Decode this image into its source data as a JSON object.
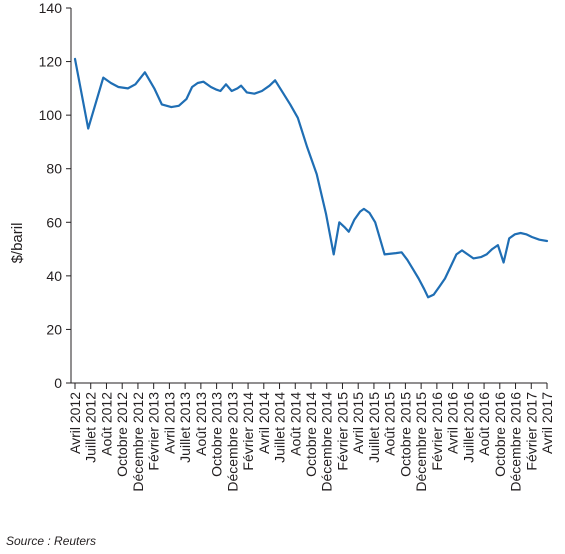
{
  "chart_data": {
    "type": "line",
    "ylabel": "$/baril",
    "ylim": [
      0,
      140
    ],
    "yticks": [
      0,
      20,
      40,
      60,
      80,
      100,
      120,
      140
    ],
    "x_tick_labels": [
      "Avril 2012",
      "Juillet 2012",
      "Août 2012",
      "Octobre 2012",
      "Décembre 2012",
      "Février 2013",
      "Avril 2013",
      "Juillet 2013",
      "Août 2013",
      "Octobre 2013",
      "Décembre 2013",
      "Février 2014",
      "Avril 2014",
      "Juillet 2014",
      "Août 2014",
      "Octobre 2014",
      "Décembre 2014",
      "Février 2015",
      "Avril 2015",
      "Juillet 2015",
      "Août 2015",
      "Octobre 2015",
      "Décembre 2015",
      "Février 2016",
      "Avril 2016",
      "Juillet 2016",
      "Août 2016",
      "Octobre 2016",
      "Décembre 2016",
      "Février 2017",
      "Avril 2017"
    ],
    "series": [
      {
        "color": "#1f6eb4",
        "points": [
          [
            0,
            121
          ],
          [
            3.5,
            95
          ],
          [
            7.5,
            114
          ],
          [
            9.5,
            112
          ],
          [
            11.5,
            110.5
          ],
          [
            14,
            110
          ],
          [
            16,
            111.5
          ],
          [
            18.5,
            116
          ],
          [
            21,
            110
          ],
          [
            23,
            104
          ],
          [
            25.5,
            103
          ],
          [
            27.5,
            103.5
          ],
          [
            29.5,
            106
          ],
          [
            31,
            110.5
          ],
          [
            32.5,
            112
          ],
          [
            34,
            112.5
          ],
          [
            36,
            110.5
          ],
          [
            37.5,
            109.5
          ],
          [
            38.5,
            109
          ],
          [
            40,
            111.5
          ],
          [
            41.5,
            109
          ],
          [
            43,
            110
          ],
          [
            44,
            111
          ],
          [
            45.5,
            108.5
          ],
          [
            47.5,
            108
          ],
          [
            49.5,
            109
          ],
          [
            51.5,
            111
          ],
          [
            53,
            113
          ],
          [
            55,
            108.5
          ],
          [
            57,
            104
          ],
          [
            59,
            99
          ],
          [
            61.5,
            88
          ],
          [
            64,
            78
          ],
          [
            66.5,
            63
          ],
          [
            68.5,
            48
          ],
          [
            70,
            60
          ],
          [
            71.5,
            58
          ],
          [
            72.5,
            56.5
          ],
          [
            74,
            61
          ],
          [
            75.5,
            64
          ],
          [
            76.5,
            65
          ],
          [
            78,
            63.5
          ],
          [
            79.5,
            60
          ],
          [
            82,
            48
          ],
          [
            85,
            48.5
          ],
          [
            86.5,
            48.8
          ],
          [
            88,
            46
          ],
          [
            89.5,
            42.5
          ],
          [
            91,
            39
          ],
          [
            92.5,
            35
          ],
          [
            93.5,
            32
          ],
          [
            95,
            33
          ],
          [
            96.5,
            36
          ],
          [
            98,
            39
          ],
          [
            99.5,
            43.5
          ],
          [
            101,
            48
          ],
          [
            102.5,
            49.5
          ],
          [
            104,
            48
          ],
          [
            105.5,
            46.5
          ],
          [
            107.5,
            47
          ],
          [
            109,
            48
          ],
          [
            110.5,
            50
          ],
          [
            112,
            51.5
          ],
          [
            113.5,
            45
          ],
          [
            115,
            54
          ],
          [
            116.5,
            55.5
          ],
          [
            118,
            56
          ],
          [
            119.5,
            55.5
          ],
          [
            121,
            54.5
          ],
          [
            123,
            53.5
          ],
          [
            125,
            53
          ]
        ]
      }
    ]
  },
  "source_label": "Source : Reuters"
}
